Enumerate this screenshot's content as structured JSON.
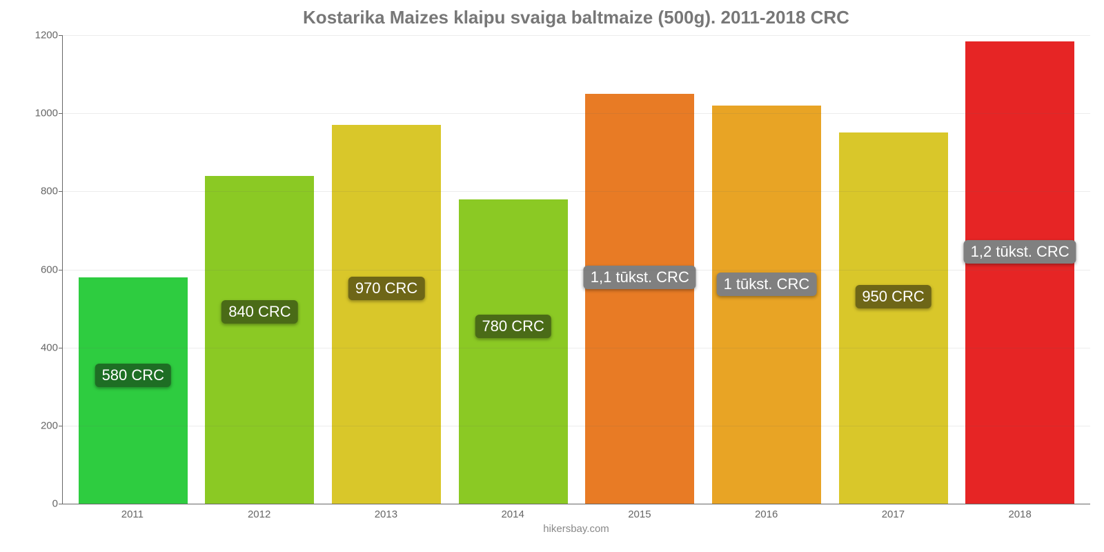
{
  "chart": {
    "type": "bar",
    "title": "Kostarika Maizes klaipu svaiga baltmaize (500g). 2011-2018 CRC",
    "title_fontsize": 26,
    "title_color": "#777777",
    "background_color": "#ffffff",
    "axis_color": "#666666",
    "grid_color": "#666666",
    "ylim": [
      0,
      1200
    ],
    "ytick_step": 200,
    "yticks": [
      0,
      200,
      400,
      600,
      800,
      1000,
      1200
    ],
    "categories": [
      "2011",
      "2012",
      "2013",
      "2014",
      "2015",
      "2016",
      "2017",
      "2018"
    ],
    "values": [
      580,
      840,
      970,
      780,
      1050,
      1020,
      950,
      1185
    ],
    "value_labels": [
      "580 CRC",
      "840 CRC",
      "970 CRC",
      "780 CRC",
      "1,1 tūkst. CRC",
      "1 tūkst. CRC",
      "950 CRC",
      "1,2 tūkst. CRC"
    ],
    "bar_colors": [
      "#2ecc40",
      "#8bc924",
      "#d9c72a",
      "#8bc924",
      "#e87b25",
      "#e8a425",
      "#d9c72a",
      "#e62525"
    ],
    "label_box_colors": [
      "#1e6e24",
      "#4a6b17",
      "#6e6617",
      "#4a6b17",
      "#808080",
      "#808080",
      "#6e6617",
      "#808080"
    ],
    "label_y_offsets": [
      0.62,
      0.62,
      0.6,
      0.62,
      0.58,
      0.58,
      0.59,
      0.57
    ],
    "bar_width": 0.86,
    "label_fontsize": 22,
    "tick_fontsize": 15,
    "footer": "hikersbay.com",
    "footer_color": "#888888"
  }
}
